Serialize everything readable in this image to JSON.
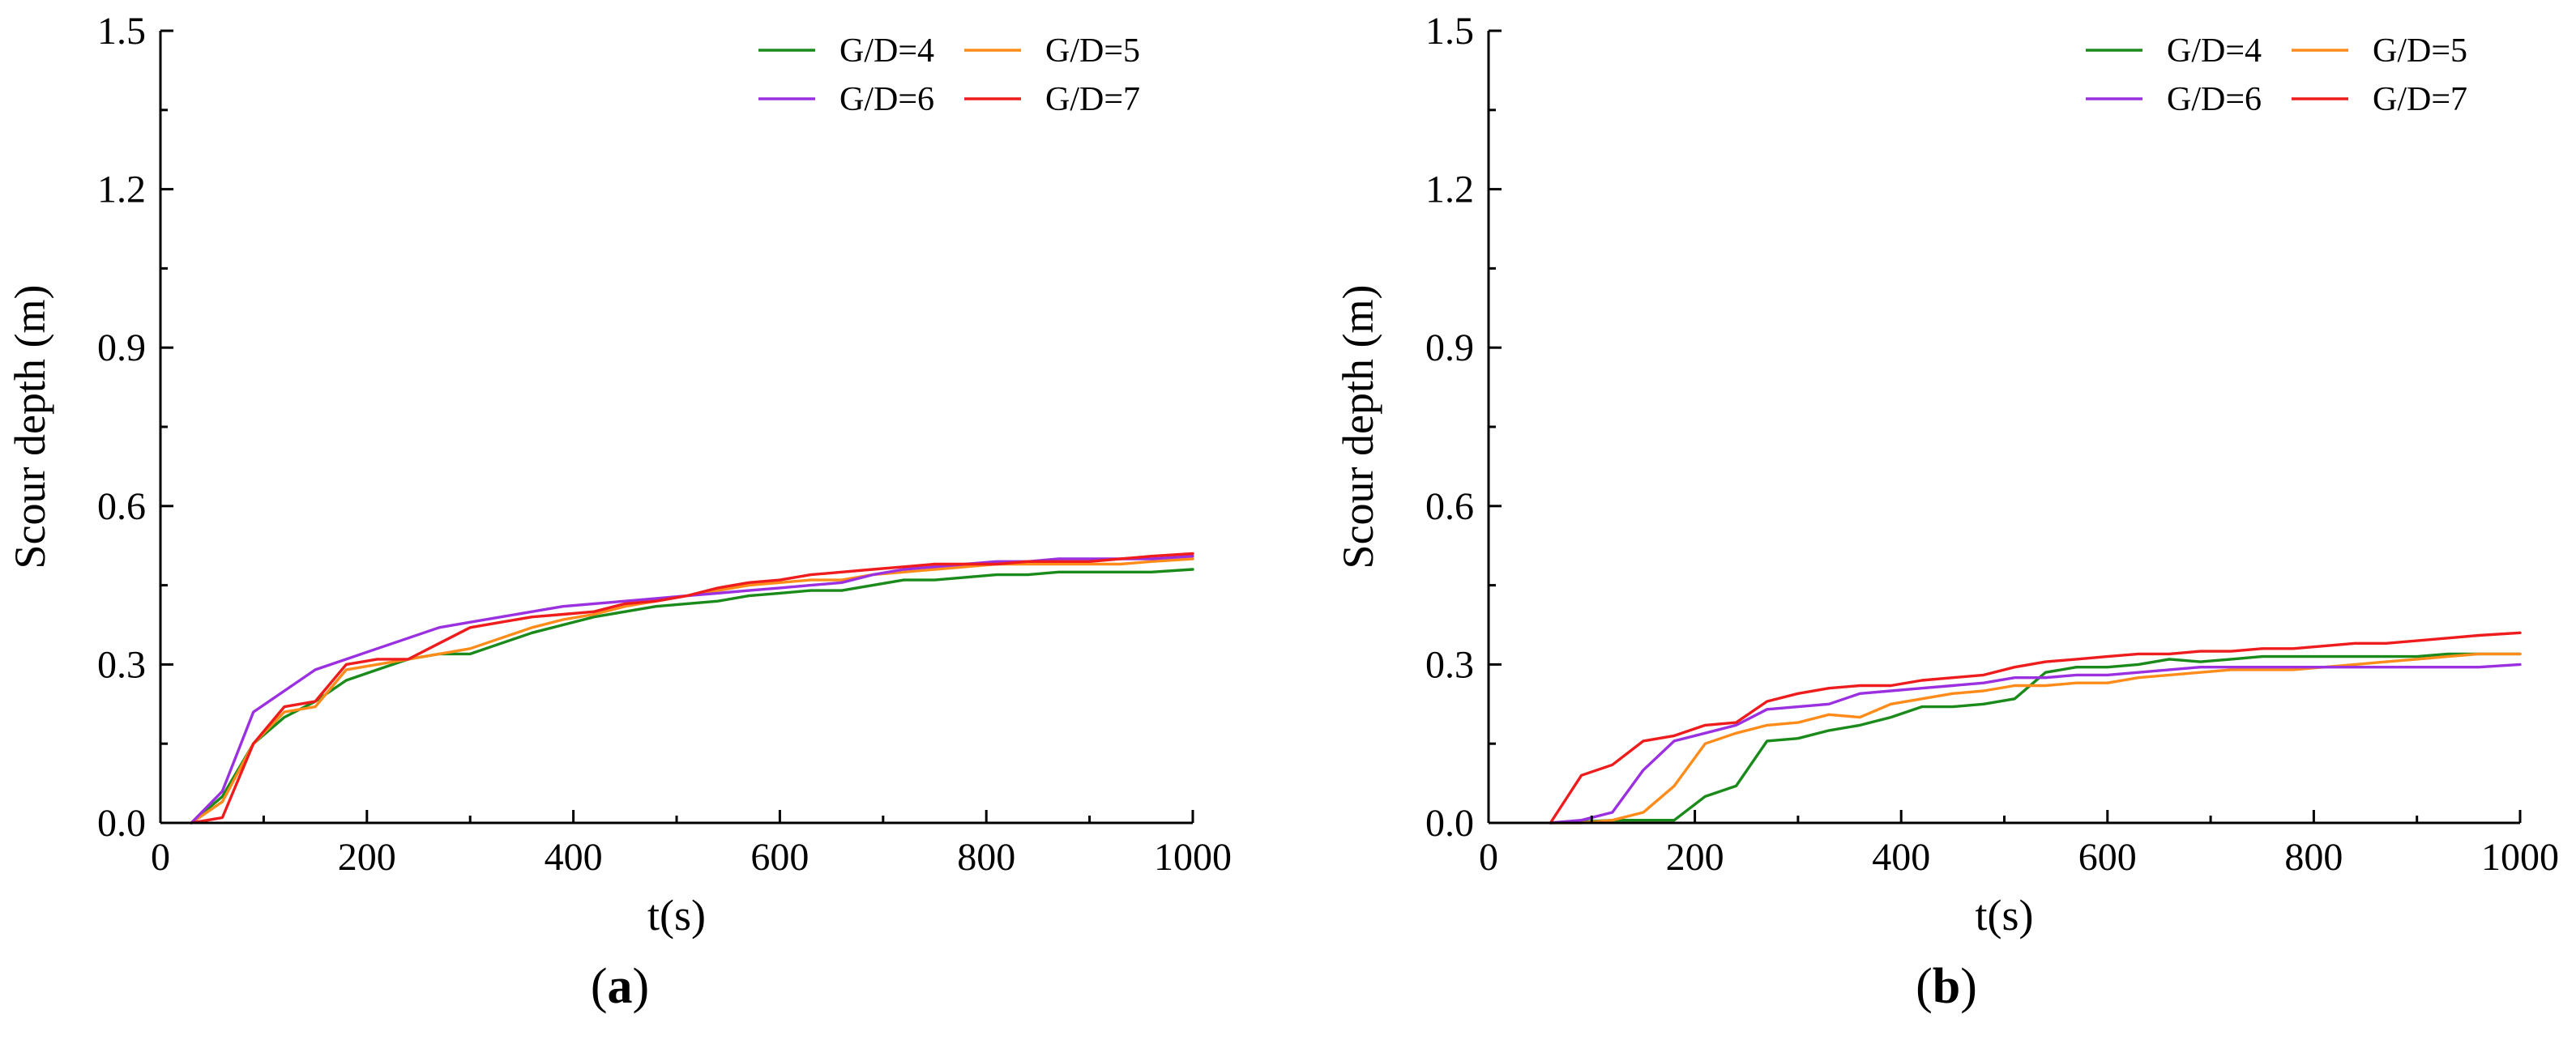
{
  "chart_data": [
    {
      "type": "line",
      "panel": "a",
      "caption_open": "(",
      "caption_letter": "a",
      "caption_close": ")",
      "xlabel": "t(s)",
      "ylabel": "Scour depth (m)",
      "xlim": [
        0,
        1000
      ],
      "ylim": [
        0,
        1.5
      ],
      "xticks": [
        "0",
        "200",
        "400",
        "600",
        "800",
        "1000"
      ],
      "yticks": [
        "0.0",
        "0.3",
        "0.6",
        "0.9",
        "1.2",
        "1.5"
      ],
      "legend_position": "top-right",
      "series": [
        {
          "name": "G/D=4",
          "color": "#1a8a1a",
          "x": [
            30,
            60,
            90,
            120,
            150,
            180,
            210,
            240,
            270,
            300,
            330,
            360,
            390,
            420,
            450,
            480,
            510,
            540,
            570,
            600,
            630,
            660,
            690,
            720,
            750,
            780,
            810,
            840,
            870,
            900,
            930,
            960,
            1000
          ],
          "y": [
            0,
            0.05,
            0.15,
            0.2,
            0.23,
            0.27,
            0.29,
            0.31,
            0.32,
            0.32,
            0.34,
            0.36,
            0.375,
            0.39,
            0.4,
            0.41,
            0.415,
            0.42,
            0.43,
            0.435,
            0.44,
            0.44,
            0.45,
            0.46,
            0.46,
            0.465,
            0.47,
            0.47,
            0.475,
            0.475,
            0.475,
            0.475,
            0.48
          ]
        },
        {
          "name": "G/D=5",
          "color": "#ff8c1a",
          "x": [
            30,
            60,
            90,
            120,
            150,
            180,
            210,
            240,
            270,
            300,
            330,
            360,
            390,
            420,
            450,
            480,
            510,
            540,
            570,
            600,
            630,
            660,
            690,
            720,
            750,
            780,
            810,
            840,
            870,
            900,
            930,
            960,
            1000
          ],
          "y": [
            0,
            0.04,
            0.15,
            0.21,
            0.22,
            0.29,
            0.3,
            0.31,
            0.32,
            0.33,
            0.35,
            0.37,
            0.385,
            0.395,
            0.41,
            0.42,
            0.43,
            0.44,
            0.45,
            0.455,
            0.46,
            0.46,
            0.47,
            0.475,
            0.48,
            0.485,
            0.49,
            0.49,
            0.49,
            0.49,
            0.49,
            0.495,
            0.5
          ]
        },
        {
          "name": "G/D=6",
          "color": "#9b30e0",
          "x": [
            30,
            60,
            90,
            120,
            150,
            180,
            210,
            240,
            270,
            300,
            330,
            360,
            390,
            420,
            450,
            480,
            510,
            540,
            570,
            600,
            630,
            660,
            690,
            720,
            750,
            780,
            810,
            840,
            870,
            900,
            930,
            960,
            1000
          ],
          "y": [
            0,
            0.06,
            0.21,
            0.25,
            0.29,
            0.31,
            0.33,
            0.35,
            0.37,
            0.38,
            0.39,
            0.4,
            0.41,
            0.415,
            0.42,
            0.425,
            0.43,
            0.435,
            0.44,
            0.445,
            0.45,
            0.455,
            0.47,
            0.48,
            0.485,
            0.49,
            0.495,
            0.495,
            0.5,
            0.5,
            0.5,
            0.5,
            0.505
          ]
        },
        {
          "name": "G/D=7",
          "color": "#ee1c1c",
          "x": [
            30,
            60,
            90,
            120,
            150,
            180,
            210,
            240,
            270,
            300,
            330,
            360,
            390,
            420,
            450,
            480,
            510,
            540,
            570,
            600,
            630,
            660,
            690,
            720,
            750,
            780,
            810,
            840,
            870,
            900,
            930,
            960,
            1000
          ],
          "y": [
            0,
            0.01,
            0.15,
            0.22,
            0.23,
            0.3,
            0.31,
            0.31,
            0.34,
            0.37,
            0.38,
            0.39,
            0.395,
            0.4,
            0.415,
            0.42,
            0.43,
            0.445,
            0.455,
            0.46,
            0.47,
            0.475,
            0.48,
            0.485,
            0.49,
            0.49,
            0.49,
            0.495,
            0.495,
            0.495,
            0.5,
            0.505,
            0.51
          ]
        }
      ]
    },
    {
      "type": "line",
      "panel": "b",
      "caption_open": "(",
      "caption_letter": "b",
      "caption_close": ")",
      "xlabel": "t(s)",
      "ylabel": "Scour depth (m)",
      "xlim": [
        0,
        1000
      ],
      "ylim": [
        0,
        1.5
      ],
      "xticks": [
        "0",
        "200",
        "400",
        "600",
        "800",
        "1000"
      ],
      "yticks": [
        "0.0",
        "0.3",
        "0.6",
        "0.9",
        "1.2",
        "1.5"
      ],
      "legend_position": "top-right",
      "series": [
        {
          "name": "G/D=4",
          "color": "#1a8a1a",
          "x": [
            60,
            90,
            120,
            150,
            180,
            210,
            240,
            270,
            300,
            330,
            360,
            390,
            420,
            450,
            480,
            510,
            540,
            570,
            600,
            630,
            660,
            690,
            720,
            750,
            780,
            810,
            840,
            870,
            900,
            930,
            960,
            1000
          ],
          "y": [
            0,
            0.002,
            0.005,
            0.005,
            0.005,
            0.05,
            0.07,
            0.155,
            0.16,
            0.175,
            0.185,
            0.2,
            0.22,
            0.22,
            0.225,
            0.235,
            0.285,
            0.295,
            0.295,
            0.3,
            0.31,
            0.305,
            0.31,
            0.315,
            0.315,
            0.315,
            0.315,
            0.315,
            0.315,
            0.32,
            0.32,
            0.32
          ]
        },
        {
          "name": "G/D=5",
          "color": "#ff8c1a",
          "x": [
            60,
            90,
            120,
            150,
            180,
            210,
            240,
            270,
            300,
            330,
            360,
            390,
            420,
            450,
            480,
            510,
            540,
            570,
            600,
            630,
            660,
            690,
            720,
            750,
            780,
            810,
            840,
            870,
            900,
            930,
            960,
            1000
          ],
          "y": [
            0,
            0,
            0.005,
            0.02,
            0.07,
            0.15,
            0.17,
            0.185,
            0.19,
            0.205,
            0.2,
            0.225,
            0.235,
            0.245,
            0.25,
            0.26,
            0.26,
            0.265,
            0.265,
            0.275,
            0.28,
            0.285,
            0.29,
            0.29,
            0.29,
            0.295,
            0.3,
            0.305,
            0.31,
            0.315,
            0.32,
            0.32
          ]
        },
        {
          "name": "G/D=6",
          "color": "#9b30e0",
          "x": [
            60,
            90,
            120,
            150,
            180,
            210,
            240,
            270,
            300,
            330,
            360,
            390,
            420,
            450,
            480,
            510,
            540,
            570,
            600,
            630,
            660,
            690,
            720,
            750,
            780,
            810,
            840,
            870,
            900,
            930,
            960,
            1000
          ],
          "y": [
            0,
            0.005,
            0.02,
            0.1,
            0.155,
            0.17,
            0.185,
            0.215,
            0.22,
            0.225,
            0.245,
            0.25,
            0.255,
            0.26,
            0.265,
            0.275,
            0.275,
            0.28,
            0.28,
            0.285,
            0.29,
            0.295,
            0.295,
            0.295,
            0.295,
            0.295,
            0.295,
            0.295,
            0.295,
            0.295,
            0.295,
            0.3
          ]
        },
        {
          "name": "G/D=7",
          "color": "#ee1c1c",
          "x": [
            60,
            90,
            120,
            150,
            180,
            210,
            240,
            270,
            300,
            330,
            360,
            390,
            420,
            450,
            480,
            510,
            540,
            570,
            600,
            630,
            660,
            690,
            720,
            750,
            780,
            810,
            840,
            870,
            900,
            930,
            960,
            1000
          ],
          "y": [
            0,
            0.09,
            0.11,
            0.155,
            0.165,
            0.185,
            0.19,
            0.23,
            0.245,
            0.255,
            0.26,
            0.26,
            0.27,
            0.275,
            0.28,
            0.295,
            0.305,
            0.31,
            0.315,
            0.32,
            0.32,
            0.325,
            0.325,
            0.33,
            0.33,
            0.335,
            0.34,
            0.34,
            0.345,
            0.35,
            0.355,
            0.36
          ]
        }
      ]
    }
  ]
}
